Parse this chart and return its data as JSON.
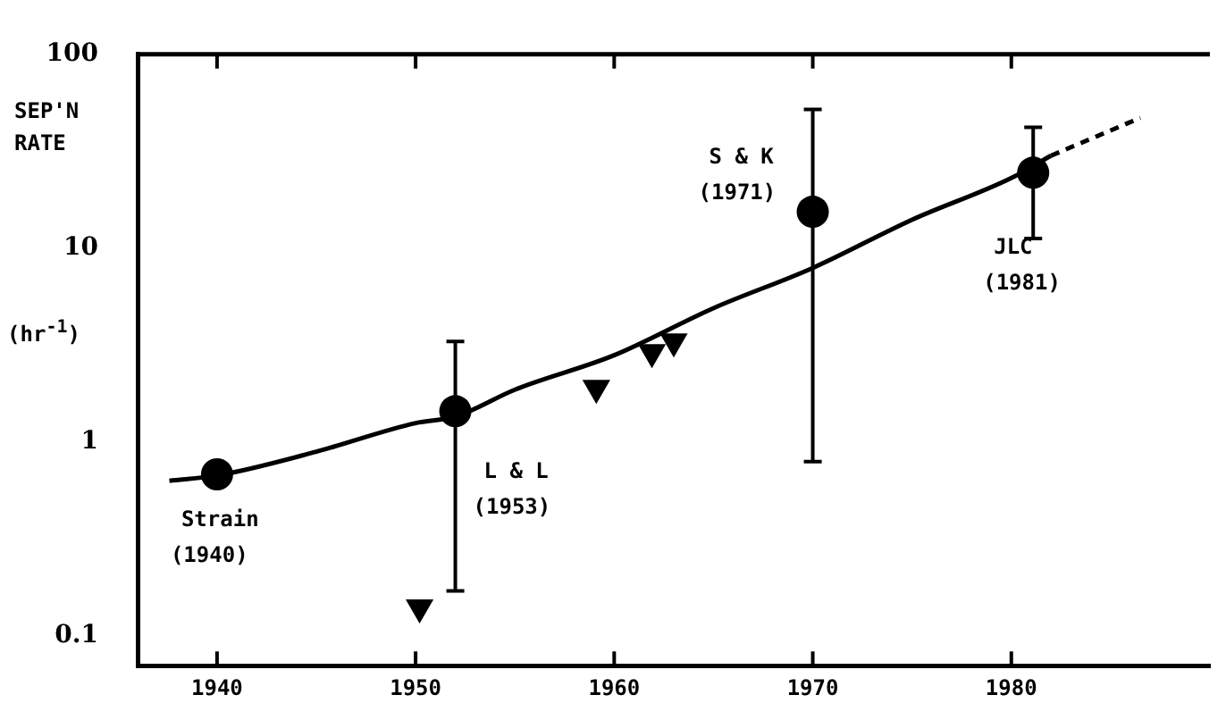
{
  "chart_data": {
    "type": "scatter",
    "ylabel": "SEP'N RATE (hr$^{-1}$)",
    "xlim": [
      1936,
      1990
    ],
    "xticks": [
      1940,
      1950,
      1960,
      1970,
      1980
    ],
    "ylim": [
      0.07,
      100
    ],
    "yticks": [
      0.1,
      1,
      10,
      100
    ],
    "log": "y",
    "grid": false,
    "legend": false,
    "series": [
      {
        "type": "line",
        "color": "#000000",
        "marker": "none",
        "line_style": "solid",
        "x": [
          1937.6,
          1940,
          1945,
          1950,
          1952,
          1955,
          1960,
          1965,
          1970,
          1975,
          1980,
          1982
        ],
        "values": [
          0.63,
          0.67,
          0.89,
          1.25,
          1.35,
          1.86,
          2.8,
          4.9,
          7.9,
          14,
          23,
          30
        ]
      },
      {
        "type": "line",
        "color": "#000000",
        "marker": "none",
        "line_style": "dashed",
        "x": [
          1982,
          1986.5
        ],
        "values": [
          30,
          47
        ]
      },
      {
        "color": "#000000",
        "marker": "circle",
        "x": [
          1940,
          1952,
          1970,
          1981.1
        ],
        "values": [
          0.68,
          1.44,
          15.4,
          24.5
        ],
        "errors": [
          null,
          [
            0.17,
            3.3
          ],
          [
            0.79,
            52
          ],
          [
            11.2,
            42
          ]
        ]
      },
      {
        "color": "#000000",
        "marker": "triangle",
        "x": [
          1950.2,
          1959.1,
          1961.9,
          1963
        ],
        "values": [
          0.14,
          1.9,
          2.9,
          3.3
        ]
      }
    ],
    "annotations": [
      {
        "text": "Strain\n(1940)",
        "x": 1940,
        "y": 0.68
      },
      {
        "text": "L & L\n(1953)",
        "x": 1952,
        "y": 1.44
      },
      {
        "text": "S & K\n(1971)",
        "x": 1970,
        "y": 15.4
      },
      {
        "text": "JLC\n(1981)",
        "x": 1981.1,
        "y": 24.5
      }
    ]
  }
}
